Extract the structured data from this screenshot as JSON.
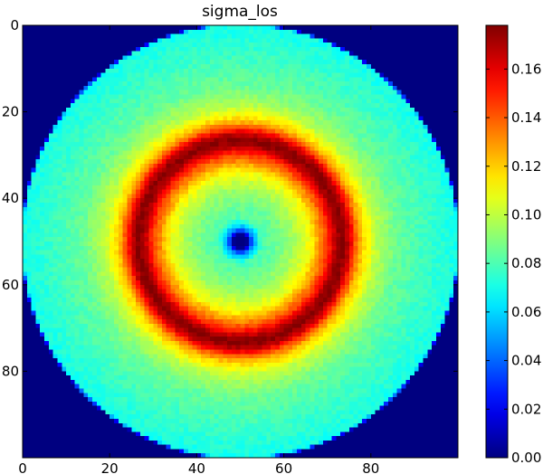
{
  "chart_data": {
    "type": "heatmap",
    "title": "sigma_los",
    "xlabel": "",
    "ylabel": "",
    "grid": false,
    "colormap": "jet",
    "x_ticks": [
      0,
      20,
      40,
      60,
      80
    ],
    "y_ticks": [
      0,
      20,
      40,
      60,
      80
    ],
    "xlim": [
      0,
      100
    ],
    "ylim": [
      100,
      0
    ],
    "colorbar": {
      "min": 0.0,
      "max": 0.178,
      "ticks": [
        "0.00",
        "0.02",
        "0.04",
        "0.06",
        "0.08",
        "0.10",
        "0.12",
        "0.14",
        "0.16"
      ]
    },
    "image_grid": {
      "nx": 100,
      "ny": 100,
      "center": [
        49.5,
        49.5
      ]
    },
    "radial_profile": {
      "radius": [
        0,
        1.5,
        3,
        5,
        8,
        12,
        16,
        20,
        22,
        23.5,
        25,
        26.5,
        28,
        31,
        36,
        42,
        50,
        50.5
      ],
      "value": [
        0.0,
        0.0,
        0.05,
        0.08,
        0.085,
        0.095,
        0.11,
        0.145,
        0.17,
        0.178,
        0.165,
        0.14,
        0.12,
        0.1,
        0.085,
        0.078,
        0.07,
        0.0
      ]
    },
    "outside_value": 0.0,
    "colors": {
      "jet": [
        "#00007f",
        "#0000ff",
        "#007fff",
        "#00ffff",
        "#7fff7f",
        "#ffff00",
        "#ff7f00",
        "#ff0000",
        "#7f0000"
      ]
    }
  }
}
